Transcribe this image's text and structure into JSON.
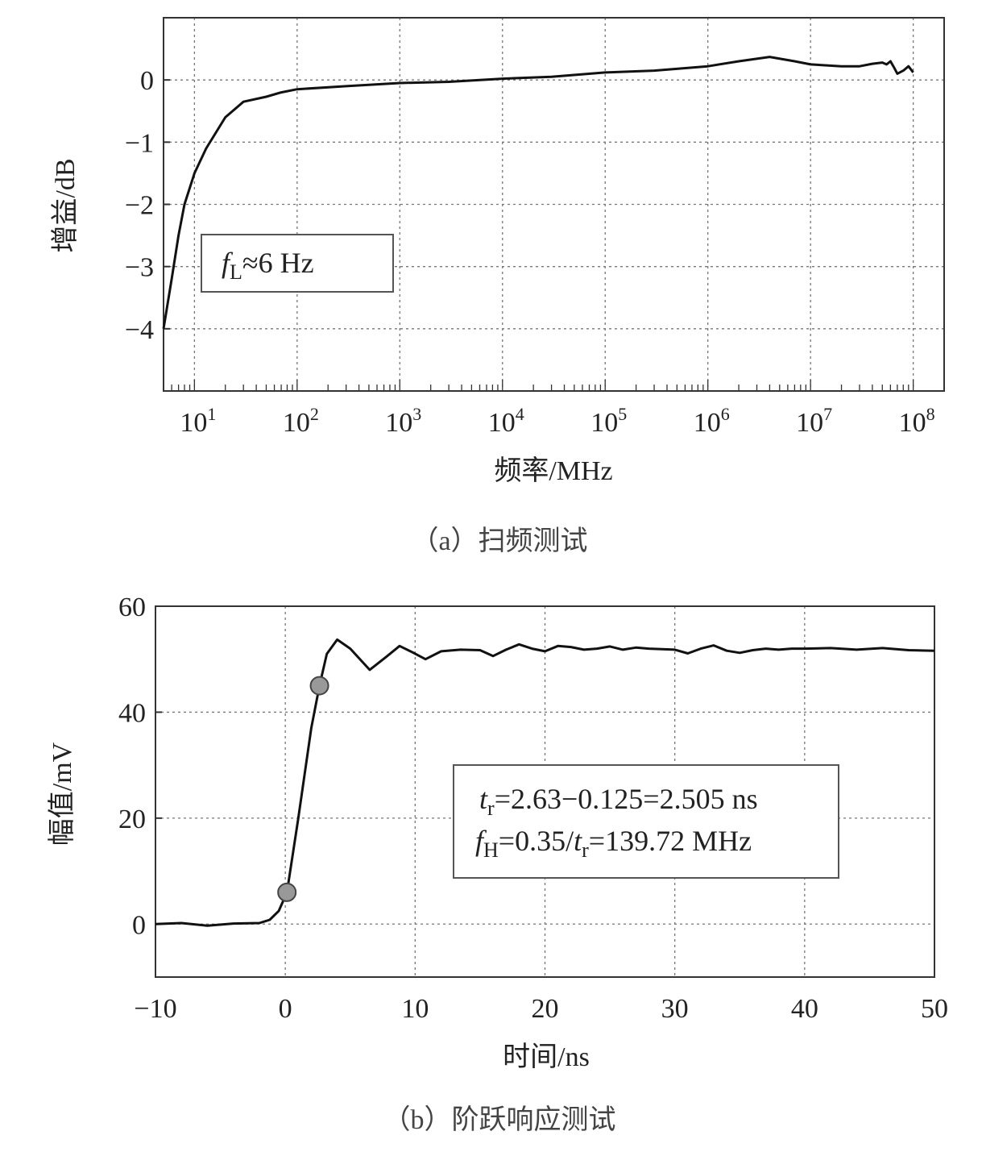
{
  "chart_data": [
    {
      "type": "line",
      "xlabel": "频率/MHz",
      "ylabel": "增益/dB",
      "caption": "（a）扫频测试",
      "x_scale": "log",
      "xlim": [
        5,
        200000000
      ],
      "ylim": [
        -5,
        1
      ],
      "xticks": [
        10,
        100,
        1000,
        10000,
        100000,
        1000000,
        10000000,
        100000000
      ],
      "xtick_labels": [
        "10^1",
        "10^2",
        "10^3",
        "10^4",
        "10^5",
        "10^6",
        "10^7",
        "10^8"
      ],
      "yticks": [
        0,
        -1,
        -2,
        -3,
        -4
      ],
      "ytick_labels": [
        "0",
        "−1",
        "−2",
        "−3",
        "−4"
      ],
      "grid": true,
      "annotation": {
        "sym": "f",
        "sub": "L",
        "rest": "≈6 Hz"
      },
      "series": [
        {
          "color": "#111111",
          "x": [
            5,
            6,
            7,
            8,
            10,
            13,
            20,
            30,
            50,
            70,
            100,
            300,
            1000,
            3000,
            10000,
            30000,
            100000,
            300000,
            1000000,
            2000000,
            4000000,
            7000000,
            10000000,
            20000000,
            30000000,
            40000000,
            50000000,
            55000000,
            60000000,
            65000000,
            70000000,
            80000000,
            90000000,
            100000000
          ],
          "y": [
            -4.0,
            -3.2,
            -2.5,
            -2.0,
            -1.5,
            -1.1,
            -0.6,
            -0.35,
            -0.27,
            -0.2,
            -0.15,
            -0.1,
            -0.05,
            -0.03,
            0.02,
            0.05,
            0.12,
            0.15,
            0.22,
            0.3,
            0.37,
            0.3,
            0.25,
            0.22,
            0.22,
            0.26,
            0.28,
            0.25,
            0.3,
            0.2,
            0.1,
            0.15,
            0.22,
            0.12
          ]
        }
      ]
    },
    {
      "type": "line",
      "xlabel": "时间/ns",
      "ylabel": "幅值/mV",
      "caption": "（b）阶跃响应测试",
      "xlim": [
        -10,
        50
      ],
      "ylim": [
        -10,
        60
      ],
      "xticks": [
        -10,
        0,
        10,
        20,
        30,
        40,
        50
      ],
      "xtick_labels": [
        "−10",
        "0",
        "10",
        "20",
        "30",
        "40",
        "50"
      ],
      "yticks": [
        0,
        20,
        40,
        60
      ],
      "ytick_labels": [
        "0",
        "20",
        "40",
        "60"
      ],
      "grid": true,
      "annotation_lines": [
        {
          "sym": "t",
          "sub": "r",
          "rest": "=2.63−0.125=2.505 ns"
        },
        {
          "sym": "f",
          "sub": "H",
          "mid": "=0.35/",
          "sym2": "t",
          "sub2": "r",
          "rest": "=139.72 MHz"
        }
      ],
      "markers": {
        "x": [
          0.125,
          2.63
        ],
        "y": [
          6,
          45
        ],
        "color": "#999999"
      },
      "series": [
        {
          "color": "#111111",
          "x": [
            -10,
            -8,
            -6,
            -4,
            -2,
            -1.2,
            -0.5,
            0.125,
            1,
            2,
            2.63,
            3.2,
            4,
            5,
            6.5,
            7.8,
            8.8,
            9.8,
            10.8,
            12,
            13.5,
            15,
            16,
            17,
            18,
            19,
            20,
            21,
            22,
            23,
            24,
            25,
            26,
            27,
            28,
            29,
            30,
            31,
            32,
            33,
            34,
            35,
            36,
            37,
            38,
            39,
            40,
            42,
            44,
            46,
            48,
            50
          ],
          "y": [
            0,
            0.2,
            -0.3,
            0.1,
            0.2,
            0.8,
            2.5,
            6,
            20,
            37,
            45,
            51,
            53.7,
            52,
            48,
            50.5,
            52.5,
            51.3,
            50,
            51.5,
            51.8,
            51.7,
            50.6,
            51.8,
            52.8,
            52,
            51.5,
            52.5,
            52.3,
            51.8,
            52,
            52.4,
            51.8,
            52.2,
            52,
            51.9,
            51.8,
            51.1,
            52,
            52.6,
            51.6,
            51.2,
            51.7,
            52,
            51.8,
            52,
            52,
            52.1,
            51.8,
            52.1,
            51.7,
            51.6
          ]
        }
      ]
    }
  ]
}
